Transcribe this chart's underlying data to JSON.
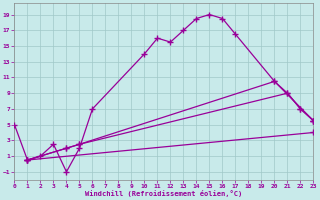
{
  "xlabel": "Windchill (Refroidissement éolien,°C)",
  "bg_color": "#c8eaea",
  "line_color": "#990099",
  "grid_color": "#a0c8c8",
  "x_ticks": [
    0,
    1,
    2,
    3,
    4,
    5,
    6,
    7,
    8,
    9,
    10,
    11,
    12,
    13,
    14,
    15,
    16,
    17,
    18,
    19,
    20,
    21,
    22,
    23
  ],
  "y_ticks": [
    -1,
    1,
    3,
    5,
    7,
    9,
    11,
    13,
    15,
    17,
    19
  ],
  "ylim": [
    -2.0,
    20.5
  ],
  "xlim": [
    0,
    23
  ],
  "series1_x": [
    0,
    1,
    2,
    3,
    4,
    5,
    6,
    10,
    11,
    12,
    13,
    14,
    15,
    16,
    17,
    20,
    21,
    22,
    23
  ],
  "series1_y": [
    5,
    0.5,
    1.0,
    2.5,
    -1.0,
    2.0,
    7.0,
    14.0,
    16.0,
    15.5,
    17.0,
    18.5,
    19.0,
    18.5,
    16.5,
    10.5,
    9.0,
    7.0,
    5.5
  ],
  "series2_x": [
    1,
    4,
    5,
    20,
    23
  ],
  "series2_y": [
    0.5,
    2.0,
    2.5,
    10.5,
    5.5
  ],
  "series3_x": [
    1,
    4,
    5,
    21,
    22,
    23
  ],
  "series3_y": [
    0.5,
    2.0,
    2.5,
    9.0,
    7.0,
    5.5
  ],
  "series4_x": [
    1,
    23
  ],
  "series4_y": [
    0.5,
    4.0
  ],
  "marker": "+",
  "markersize": 4,
  "linewidth": 0.9
}
